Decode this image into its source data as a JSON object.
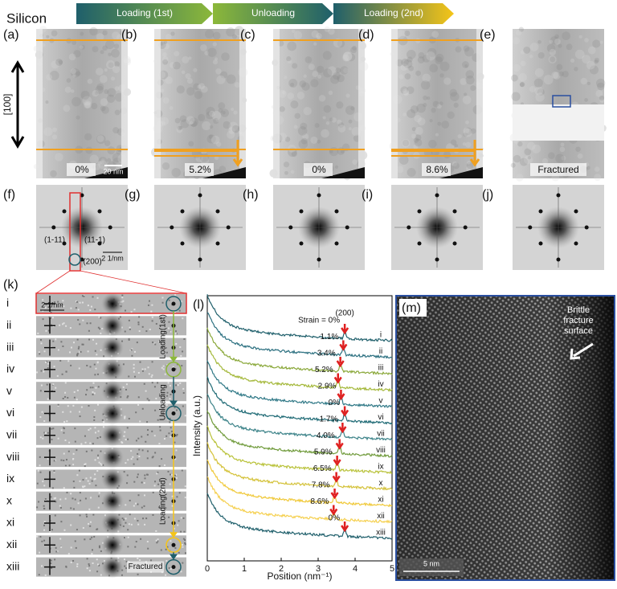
{
  "header": {
    "sample": "Silicon",
    "stages": [
      "Loading (1st)",
      "Unloading",
      "Loading (2nd)"
    ]
  },
  "panels_top": {
    "labels": [
      "(a)",
      "(b)",
      "(c)",
      "(d)",
      "(e)"
    ],
    "captions": [
      "0%",
      "5.2%",
      "0%",
      "8.6%",
      "Fractured"
    ],
    "scale_bar": "20 nm",
    "direction": "[100]"
  },
  "panels_fft": {
    "labels": [
      "(f)",
      "(g)",
      "(h)",
      "(i)",
      "(j)"
    ],
    "spots": [
      "(1-11)",
      "(11-1)",
      "(200)"
    ],
    "scale_bar": "2 1/nm"
  },
  "panel_k": {
    "label": "(k)",
    "rows": [
      "i",
      "ii",
      "iii",
      "iv",
      "v",
      "vi",
      "vii",
      "viii",
      "ix",
      "x",
      "xi",
      "xii",
      "xiii"
    ],
    "scale_bar": "2 1/nm",
    "annotations": [
      "Loading(1st)",
      "Unloading",
      "Loading(2nd)",
      "Fractured"
    ]
  },
  "panel_l": {
    "label": "(l)",
    "peak": "(200)",
    "y_label": "Intensity (a.u.)",
    "x_label": "Position (nm⁻¹)",
    "xlim": [
      0,
      5
    ],
    "xticks": [
      0,
      1,
      2,
      3,
      4,
      5
    ],
    "strains": [
      "Strain = 0%",
      "1.1%",
      "3.4%",
      "5.2%",
      "2.9%",
      "0%",
      "1.7%",
      "4.0%",
      "5.9%",
      "6.5%",
      "7.8%",
      "8.6%",
      "0%"
    ],
    "rows": [
      "i",
      "ii",
      "iii",
      "iv",
      "v",
      "vi",
      "vii",
      "viii",
      "ix",
      "x",
      "xi",
      "xii",
      "xiii"
    ]
  },
  "panel_m": {
    "label": "(m)",
    "annotation": [
      "Brittle",
      "fracture",
      "surface"
    ],
    "scale_bar": "5 nm"
  }
}
